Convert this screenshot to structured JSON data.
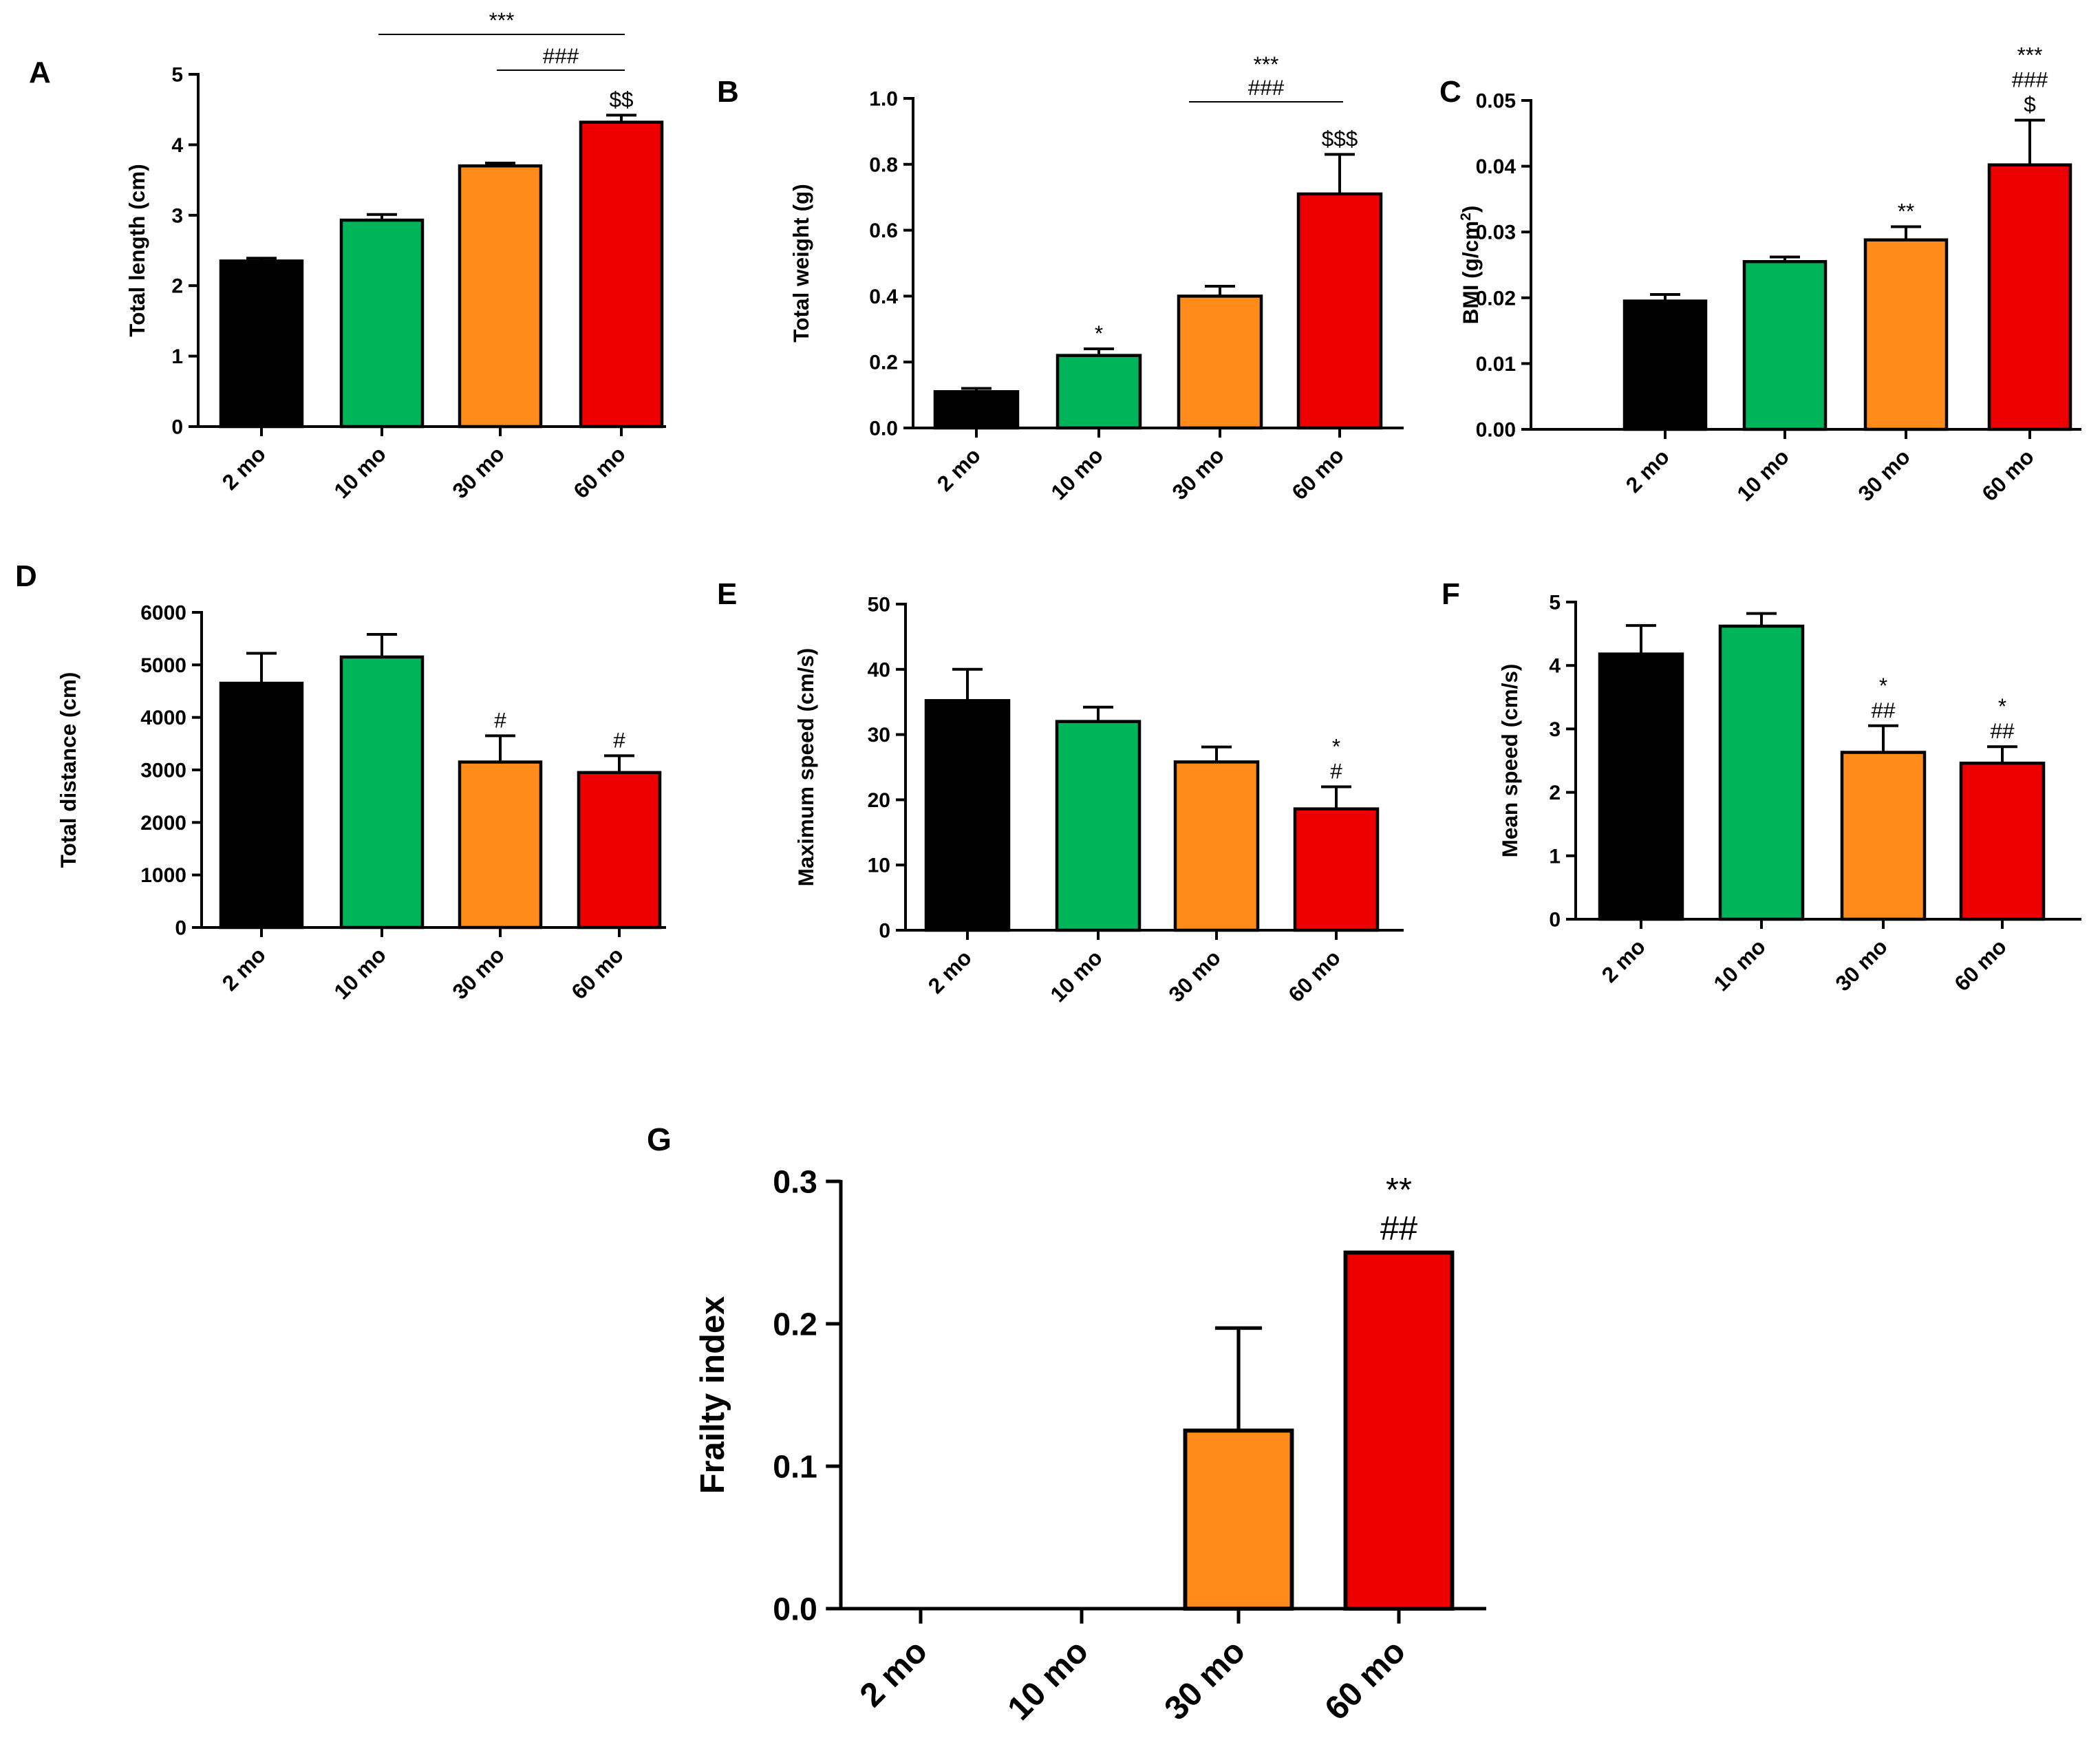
{
  "colors": [
    "#000000",
    "#00b45a",
    "#ff8c1a",
    "#ee0000"
  ],
  "chart_data": [
    {
      "id": "A",
      "panel_label": "A",
      "type": "bar",
      "categories": [
        "2 mo",
        "10 mo",
        "30 mo",
        "60 mo"
      ],
      "values": [
        2.35,
        2.93,
        3.7,
        4.32
      ],
      "errors": [
        0.04,
        0.08,
        0.04,
        0.1
      ],
      "ylabel": "Total length (cm)",
      "ylim": [
        0,
        5
      ],
      "yticks": [
        "0",
        "1",
        "2",
        "3",
        "4",
        "5"
      ],
      "annotations": [
        [],
        [],
        [],
        [
          "$$"
        ]
      ],
      "brackets": [
        {
          "from": 1,
          "to": 3,
          "text": "***"
        },
        {
          "from": 2,
          "to": 3,
          "text": "###"
        }
      ]
    },
    {
      "id": "B",
      "panel_label": "B",
      "type": "bar",
      "categories": [
        "2 mo",
        "10 mo",
        "30 mo",
        "60 mo"
      ],
      "values": [
        0.11,
        0.22,
        0.4,
        0.71
      ],
      "errors": [
        0.01,
        0.02,
        0.03,
        0.12
      ],
      "ylabel": "Total weight (g)",
      "ylim": [
        0,
        1.0
      ],
      "yticks": [
        "0.0",
        "0.2",
        "0.4",
        "0.6",
        "0.8",
        "1.0"
      ],
      "annotations": [
        [],
        [
          "*"
        ],
        [],
        [
          "$$$"
        ]
      ],
      "brackets": [
        {
          "from": 2,
          "to": 3,
          "text": "***",
          "text2": "###"
        }
      ]
    },
    {
      "id": "C",
      "panel_label": "C",
      "type": "bar",
      "categories": [
        "2 mo",
        "10 mo",
        "30 mo",
        "60 mo"
      ],
      "values": [
        0.0195,
        0.0255,
        0.0288,
        0.0402
      ],
      "errors": [
        0.001,
        0.0007,
        0.002,
        0.0068
      ],
      "ylabel": "BMI (g/cm",
      "ylabel_sup": "2",
      "ylabel_tail": ")",
      "ylim": [
        0,
        0.05
      ],
      "yticks": [
        "0.00",
        "0.01",
        "0.02",
        "0.03",
        "0.04",
        "0.05"
      ],
      "annotations": [
        [],
        [],
        [
          "**"
        ],
        [
          "***",
          "###",
          "$"
        ]
      ],
      "brackets": []
    },
    {
      "id": "D",
      "panel_label": "D",
      "type": "bar",
      "categories": [
        "2 mo",
        "10 mo",
        "30 mo",
        "60 mo"
      ],
      "values": [
        4650,
        5150,
        3150,
        2950
      ],
      "errors": [
        570,
        430,
        500,
        320
      ],
      "ylabel": "Total distance (cm)",
      "ylim": [
        0,
        6000
      ],
      "yticks": [
        "0",
        "1000",
        "2000",
        "3000",
        "4000",
        "5000",
        "6000"
      ],
      "annotations": [
        [],
        [],
        [
          "#"
        ],
        [
          "#"
        ]
      ],
      "brackets": []
    },
    {
      "id": "E",
      "panel_label": "E",
      "type": "bar",
      "categories": [
        "2 mo",
        "10 mo",
        "30 mo",
        "60 mo"
      ],
      "values": [
        35.2,
        32.0,
        25.8,
        18.6
      ],
      "errors": [
        4.8,
        2.2,
        2.3,
        3.4
      ],
      "ylabel": "Maximum speed (cm/s)",
      "ylim": [
        0,
        50
      ],
      "yticks": [
        "0",
        "10",
        "20",
        "30",
        "40",
        "50"
      ],
      "annotations": [
        [],
        [],
        [],
        [
          "*",
          "#"
        ]
      ],
      "brackets": []
    },
    {
      "id": "F",
      "panel_label": "F",
      "type": "bar",
      "categories": [
        "2 mo",
        "10 mo",
        "30 mo",
        "60 mo"
      ],
      "values": [
        4.18,
        4.62,
        2.63,
        2.46
      ],
      "errors": [
        0.45,
        0.2,
        0.42,
        0.26
      ],
      "ylabel": "Mean speed (cm/s)",
      "ylim": [
        0,
        5
      ],
      "yticks": [
        "0",
        "1",
        "2",
        "3",
        "4",
        "5"
      ],
      "annotations": [
        [],
        [],
        [
          "*",
          "##"
        ],
        [
          "*",
          "##"
        ]
      ],
      "brackets": []
    },
    {
      "id": "G",
      "panel_label": "G",
      "type": "bar",
      "categories": [
        "2 mo",
        "10 mo",
        "30 mo",
        "60 mo"
      ],
      "values": [
        0,
        0,
        0.125,
        0.25
      ],
      "errors": [
        0,
        0,
        0.072,
        0
      ],
      "ylabel": "Frailty index",
      "ylim": [
        0,
        0.3
      ],
      "yticks": [
        "0.0",
        "0.1",
        "0.2",
        "0.3"
      ],
      "annotations": [
        [],
        [],
        [],
        [
          "**",
          "##"
        ]
      ],
      "brackets": []
    }
  ]
}
